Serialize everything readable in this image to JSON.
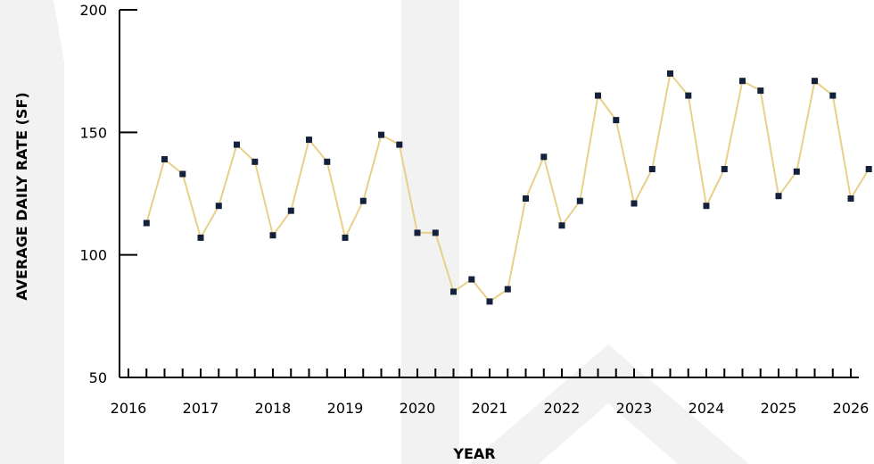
{
  "colors": {
    "line": "#E8D089",
    "marker": "#14213D",
    "axis": "#000000",
    "watermark": "#F2F2F2"
  },
  "chart_data": {
    "type": "line",
    "title": "",
    "xlabel": "YEAR",
    "ylabel": "AVERAGE DAILY RATE (SF)",
    "xlim": [
      2016,
      2026.25
    ],
    "ylim": [
      50,
      200
    ],
    "x_ticks": [
      "2016",
      "2017",
      "2018",
      "2019",
      "2020",
      "2021",
      "2022",
      "2023",
      "2024",
      "2025",
      "2026"
    ],
    "y_ticks": [
      "50",
      "100",
      "150",
      "200"
    ],
    "grid": false,
    "series": [
      {
        "x": [
          2016.25,
          2016.5,
          2016.75,
          2017.0,
          2017.25,
          2017.5,
          2017.75,
          2018.0,
          2018.25,
          2018.5,
          2018.75,
          2019.0,
          2019.25,
          2019.5,
          2019.75,
          2020.0,
          2020.25,
          2020.5,
          2020.75,
          2021.0,
          2021.25,
          2021.5,
          2021.75,
          2022.0,
          2022.25,
          2022.5,
          2022.75,
          2023.0,
          2023.25,
          2023.5,
          2023.75,
          2024.0,
          2024.25,
          2024.5,
          2024.75,
          2025.0,
          2025.25,
          2025.5,
          2025.75,
          2026.0,
          2026.25
        ],
        "values": [
          113,
          139,
          133,
          107,
          120,
          145,
          138,
          108,
          118,
          147,
          138,
          107,
          122,
          149,
          145,
          109,
          109,
          85,
          90,
          81,
          86,
          123,
          140,
          112,
          122,
          165,
          155,
          121,
          135,
          174,
          165,
          120,
          135,
          171,
          167,
          124,
          134,
          171,
          165,
          123,
          135
        ]
      }
    ]
  }
}
